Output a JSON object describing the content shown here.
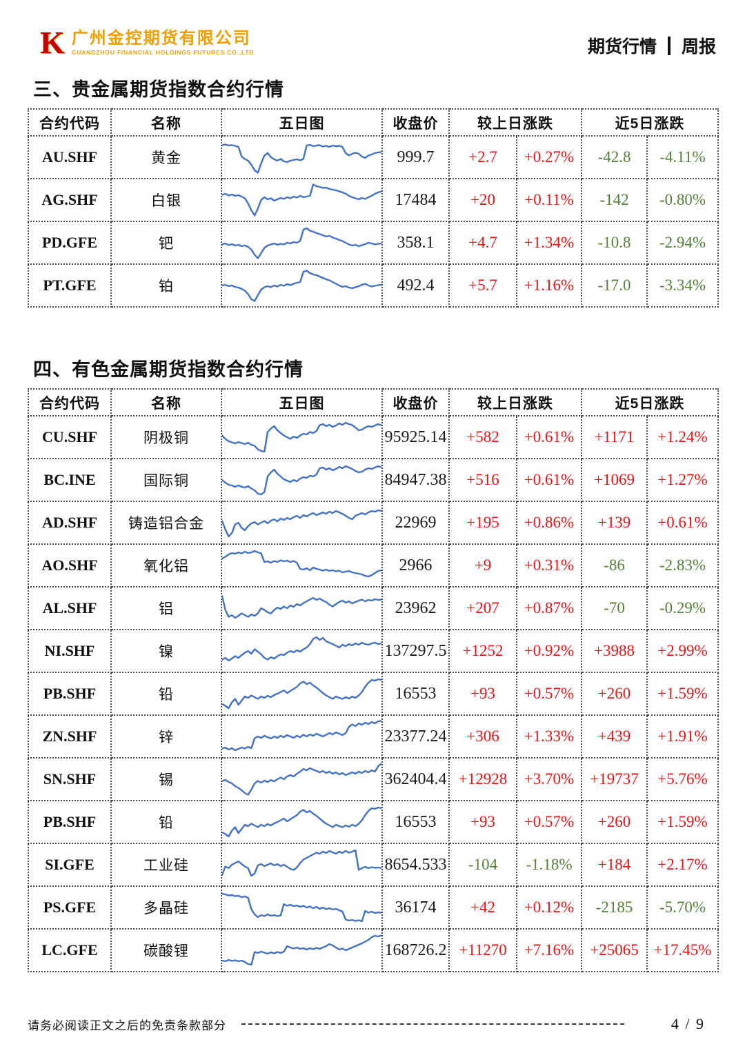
{
  "header": {
    "logo_mark": "K",
    "company_cn": "广州金控期货有限公司",
    "company_en": "GUANGZHOU FINANCIAL HOLDINGS FUTURES CO.,LTD",
    "doc_type": "期货行情",
    "doc_period": "周报"
  },
  "colors": {
    "up": "#ee1111",
    "down": "#538135",
    "chart_line": "#4472C4",
    "brand_red": "#c40000",
    "brand_gold": "#f09e00"
  },
  "columns": {
    "code": "合约代码",
    "name": "名称",
    "chart": "五日图",
    "close": "收盘价",
    "day_change": "较上日涨跌",
    "five_day_change": "近5日涨跌"
  },
  "tables": [
    {
      "title": "三、贵金属期货指数合约行情",
      "rows": [
        {
          "code": "AU.SHF",
          "name": "黄金",
          "close": "999.7",
          "d1": "+2.7",
          "d1_pct": "+0.27%",
          "d5": "-42.8",
          "d5_pct": "-4.11%",
          "spark": [
            85,
            87,
            84,
            85,
            83,
            80,
            52,
            45,
            40,
            28,
            12,
            5,
            32,
            55,
            62,
            50,
            44,
            40,
            45,
            38,
            36,
            40,
            42,
            44,
            41,
            45,
            84,
            86,
            82,
            84,
            85,
            81,
            83,
            80,
            84,
            82,
            83,
            80,
            62,
            55,
            60,
            63,
            60,
            52,
            48,
            55,
            58,
            62,
            64,
            65
          ]
        },
        {
          "code": "AG.SHF",
          "name": "白银",
          "close": "17484",
          "d1": "+20",
          "d1_pct": "+0.11%",
          "d5": "-142",
          "d5_pct": "-0.80%",
          "spark": [
            65,
            68,
            63,
            66,
            62,
            64,
            60,
            55,
            40,
            20,
            5,
            25,
            50,
            58,
            52,
            55,
            48,
            52,
            56,
            53,
            58,
            55,
            60,
            57,
            62,
            58,
            60,
            62,
            95,
            90,
            88,
            85,
            86,
            82,
            80,
            78,
            75,
            72,
            68,
            62,
            58,
            55,
            52,
            56,
            53,
            58,
            62,
            68,
            72,
            75
          ]
        },
        {
          "code": "PD.GFE",
          "name": "钯",
          "close": "358.1",
          "d1": "+4.7",
          "d1_pct": "+1.34%",
          "d5": "-10.8",
          "d5_pct": "-2.94%",
          "spark": [
            45,
            48,
            43,
            46,
            42,
            44,
            40,
            42,
            38,
            30,
            15,
            5,
            20,
            35,
            42,
            45,
            48,
            44,
            47,
            45,
            50,
            48,
            52,
            50,
            55,
            88,
            92,
            85,
            82,
            78,
            75,
            72,
            68,
            70,
            65,
            62,
            58,
            55,
            50,
            45,
            42,
            44,
            40,
            43,
            46,
            50,
            48,
            45,
            47,
            48
          ]
        },
        {
          "code": "PT.GFE",
          "name": "铂",
          "close": "492.4",
          "d1": "+5.7",
          "d1_pct": "+1.16%",
          "d5": "-17.0",
          "d5_pct": "-3.34%",
          "spark": [
            50,
            52,
            48,
            50,
            46,
            44,
            40,
            35,
            25,
            10,
            5,
            22,
            38,
            45,
            48,
            45,
            50,
            47,
            52,
            49,
            54,
            51,
            55,
            58,
            60,
            90,
            93,
            86,
            82,
            80,
            76,
            72,
            68,
            65,
            60,
            55,
            50,
            46,
            48,
            44,
            42,
            45,
            48,
            52,
            55,
            50,
            47,
            49,
            51,
            52
          ]
        }
      ]
    },
    {
      "title": "四、有色金属期货指数合约行情",
      "rows": [
        {
          "code": "CU.SHF",
          "name": "阴极铜",
          "close": "95925.14",
          "d1": "+582",
          "d1_pct": "+0.61%",
          "d5": "+1171",
          "d5_pct": "+1.24%",
          "spark": [
            55,
            45,
            38,
            35,
            32,
            36,
            33,
            30,
            34,
            28,
            25,
            15,
            10,
            8,
            65,
            75,
            82,
            70,
            62,
            55,
            50,
            45,
            52,
            48,
            55,
            60,
            58,
            65,
            62,
            68,
            85,
            88,
            82,
            86,
            80,
            84,
            90,
            86,
            92,
            88,
            85,
            78,
            70,
            72,
            78,
            82,
            80,
            84,
            88,
            85
          ]
        },
        {
          "code": "BC.INE",
          "name": "国际铜",
          "close": "84947.38",
          "d1": "+516",
          "d1_pct": "+0.61%",
          "d5": "+1069",
          "d5_pct": "+1.27%",
          "spark": [
            50,
            42,
            36,
            34,
            30,
            34,
            30,
            28,
            32,
            25,
            20,
            10,
            8,
            15,
            60,
            72,
            80,
            68,
            60,
            52,
            48,
            44,
            50,
            46,
            54,
            58,
            56,
            62,
            60,
            66,
            84,
            86,
            80,
            84,
            78,
            82,
            88,
            84,
            90,
            86,
            82,
            76,
            72,
            74,
            80,
            84,
            82,
            86,
            90,
            87
          ]
        },
        {
          "code": "AD.SHF",
          "name": "铸造铝合金",
          "close": "22969",
          "d1": "+195",
          "d1_pct": "+0.86%",
          "d5": "+139",
          "d5_pct": "+0.61%",
          "spark": [
            55,
            30,
            10,
            20,
            45,
            50,
            35,
            28,
            40,
            48,
            52,
            45,
            50,
            55,
            48,
            56,
            60,
            54,
            62,
            58,
            64,
            60,
            66,
            70,
            64,
            72,
            68,
            74,
            78,
            72,
            76,
            80,
            76,
            82,
            78,
            84,
            80,
            76,
            70,
            64,
            60,
            70,
            74,
            78,
            74,
            80,
            84,
            82,
            86,
            84
          ]
        },
        {
          "code": "AO.SHF",
          "name": "氧化铝",
          "close": "2966",
          "d1": "+9",
          "d1_pct": "+0.31%",
          "d5": "-86",
          "d5_pct": "-2.83%",
          "spark": [
            70,
            75,
            82,
            86,
            84,
            88,
            85,
            90,
            86,
            88,
            92,
            88,
            85,
            60,
            62,
            58,
            63,
            60,
            65,
            62,
            64,
            60,
            63,
            58,
            40,
            38,
            42,
            36,
            44,
            40,
            38,
            35,
            38,
            34,
            36,
            33,
            35,
            30,
            32,
            34,
            30,
            28,
            26,
            24,
            20,
            18,
            22,
            28,
            34,
            36
          ]
        },
        {
          "code": "AL.SHF",
          "name": "铝",
          "close": "23962",
          "d1": "+207",
          "d1_pct": "+0.87%",
          "d5": "-70",
          "d5_pct": "-0.29%",
          "spark": [
            85,
            45,
            25,
            30,
            22,
            28,
            35,
            30,
            25,
            32,
            28,
            35,
            50,
            45,
            38,
            35,
            45,
            52,
            48,
            55,
            50,
            58,
            54,
            62,
            58,
            65,
            70,
            75,
            80,
            74,
            78,
            72,
            68,
            60,
            55,
            62,
            68,
            72,
            66,
            70,
            64,
            68,
            72,
            75,
            70,
            74,
            72,
            76,
            74,
            75
          ]
        },
        {
          "code": "NI.SHF",
          "name": "镍",
          "close": "137297.5",
          "d1": "+1252",
          "d1_pct": "+0.92%",
          "d5": "+3988",
          "d5_pct": "+2.99%",
          "spark": [
            25,
            30,
            22,
            28,
            35,
            30,
            38,
            45,
            50,
            42,
            55,
            48,
            40,
            30,
            25,
            32,
            28,
            35,
            40,
            38,
            45,
            50,
            46,
            52,
            48,
            55,
            60,
            70,
            85,
            90,
            82,
            88,
            78,
            74,
            70,
            65,
            60,
            68,
            64,
            70,
            66,
            72,
            68,
            74,
            70,
            68,
            72,
            74,
            70,
            72
          ]
        },
        {
          "code": "PB.SHF",
          "name": "铅",
          "close": "16553",
          "d1": "+93",
          "d1_pct": "+0.57%",
          "d5": "+260",
          "d5_pct": "+1.59%",
          "spark": [
            20,
            15,
            8,
            25,
            35,
            18,
            30,
            42,
            38,
            45,
            40,
            35,
            42,
            38,
            44,
            40,
            46,
            50,
            55,
            60,
            52,
            58,
            64,
            70,
            80,
            85,
            78,
            82,
            74,
            68,
            60,
            52,
            45,
            40,
            35,
            42,
            38,
            35,
            40,
            36,
            42,
            38,
            45,
            55,
            70,
            82,
            90,
            88,
            92,
            90
          ]
        },
        {
          "code": "ZN.SHF",
          "name": "锌",
          "close": "23377.24",
          "d1": "+306",
          "d1_pct": "+1.33%",
          "d5": "+439",
          "d5_pct": "+1.91%",
          "spark": [
            15,
            18,
            12,
            16,
            10,
            14,
            18,
            15,
            20,
            16,
            45,
            50,
            46,
            52,
            48,
            44,
            50,
            46,
            52,
            48,
            54,
            50,
            46,
            52,
            48,
            55,
            50,
            56,
            52,
            58,
            54,
            50,
            55,
            60,
            56,
            62,
            58,
            54,
            60,
            78,
            85,
            80,
            88,
            84,
            90,
            86,
            92,
            88,
            94,
            95
          ]
        },
        {
          "code": "SN.SHF",
          "name": "锡",
          "close": "362404.4",
          "d1": "+12928",
          "d1_pct": "+3.70%",
          "d5": "+19737",
          "d5_pct": "+5.76%",
          "spark": [
            45,
            48,
            42,
            38,
            30,
            25,
            18,
            10,
            5,
            20,
            38,
            45,
            40,
            46,
            42,
            48,
            44,
            50,
            55,
            50,
            58,
            62,
            58,
            66,
            72,
            80,
            76,
            82,
            78,
            74,
            70,
            74,
            68,
            72,
            66,
            70,
            64,
            68,
            62,
            66,
            70,
            66,
            72,
            68,
            74,
            70,
            76,
            72,
            88,
            95
          ]
        },
        {
          "code": "PB.SHF",
          "name": "铅",
          "close": "16553",
          "d1": "+93",
          "d1_pct": "+0.57%",
          "d5": "+260",
          "d5_pct": "+1.59%",
          "spark": [
            20,
            15,
            8,
            25,
            35,
            18,
            30,
            42,
            38,
            45,
            40,
            35,
            42,
            38,
            44,
            40,
            46,
            50,
            55,
            60,
            52,
            58,
            64,
            70,
            80,
            85,
            78,
            82,
            74,
            68,
            60,
            52,
            45,
            40,
            35,
            42,
            38,
            35,
            40,
            36,
            42,
            38,
            45,
            55,
            70,
            82,
            90,
            88,
            92,
            90
          ]
        },
        {
          "code": "SI.GFE",
          "name": "工业硅",
          "close": "8654.533",
          "d1": "-104",
          "d1_pct": "-1.18%",
          "d5": "+184",
          "d5_pct": "+2.17%",
          "spark": [
            20,
            45,
            40,
            50,
            55,
            60,
            52,
            45,
            40,
            18,
            25,
            48,
            52,
            46,
            50,
            54,
            48,
            52,
            46,
            50,
            44,
            38,
            35,
            42,
            55,
            65,
            70,
            75,
            80,
            85,
            82,
            88,
            84,
            90,
            86,
            82,
            88,
            84,
            90,
            85,
            88,
            92,
            35,
            40,
            44,
            40,
            43,
            41,
            42,
            40
          ]
        },
        {
          "code": "PS.GFE",
          "name": "多晶硅",
          "close": "36174",
          "d1": "+42",
          "d1_pct": "+0.12%",
          "d5": "-2185",
          "d5_pct": "-5.70%",
          "spark": [
            90,
            88,
            85,
            86,
            83,
            84,
            80,
            82,
            78,
            45,
            30,
            22,
            28,
            25,
            30,
            26,
            28,
            25,
            27,
            60,
            55,
            58,
            54,
            56,
            52,
            55,
            50,
            53,
            48,
            52,
            46,
            50,
            45,
            48,
            44,
            46,
            42,
            38,
            15,
            12,
            14,
            11,
            13,
            10,
            40,
            35,
            38,
            34,
            36,
            35
          ]
        },
        {
          "code": "LC.GFE",
          "name": "碳酸锂",
          "close": "168726.2",
          "d1": "+11270",
          "d1_pct": "+7.16%",
          "d5": "+25065",
          "d5_pct": "+17.45%",
          "spark": [
            20,
            18,
            22,
            19,
            21,
            18,
            20,
            16,
            10,
            8,
            45,
            42,
            46,
            43,
            40,
            44,
            41,
            45,
            42,
            46,
            62,
            58,
            55,
            58,
            54,
            56,
            52,
            56,
            53,
            57,
            54,
            58,
            62,
            68,
            64,
            58,
            52,
            55,
            50,
            54,
            58,
            62,
            66,
            70,
            75,
            80,
            88,
            92,
            90,
            93
          ]
        }
      ]
    }
  ],
  "footer": {
    "disclaimer": "请务必阅读正文之后的免责条款部分",
    "page_indicator": "4 / 9"
  }
}
